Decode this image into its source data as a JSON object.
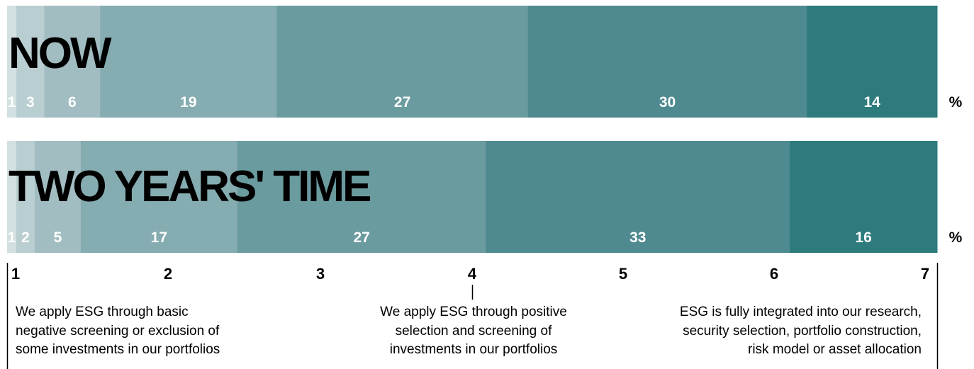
{
  "chart_data": {
    "type": "bar",
    "orientation": "horizontal-stacked-100",
    "categories": [
      "1",
      "2",
      "3",
      "4",
      "5",
      "6",
      "7"
    ],
    "unit": "%",
    "colors": [
      "#d3e0e2",
      "#b9ced1",
      "#a2bdc1",
      "#85acb0",
      "#6a9b9f",
      "#4e8a8f",
      "#2d7b7c"
    ],
    "series": [
      {
        "name": "NOW",
        "values": [
          1,
          3,
          6,
          19,
          27,
          30,
          14
        ]
      },
      {
        "name": "TWO YEARS' TIME",
        "values": [
          1,
          2,
          5,
          17,
          27,
          33,
          16
        ]
      }
    ],
    "scale": {
      "ticks": [
        "1",
        "2",
        "3",
        "4",
        "5",
        "6",
        "7"
      ],
      "descriptions": {
        "left": [
          "We apply ESG through basic",
          "negative screening or exclusion of",
          "some investments in our portfolios"
        ],
        "middle": [
          "We apply ESG through positive",
          "selection and screening of",
          "investments in our portfolios"
        ],
        "right": [
          "ESG is fully integrated into our research,",
          "security selection, portfolio construction,",
          "risk model or asset allocation"
        ]
      }
    }
  }
}
